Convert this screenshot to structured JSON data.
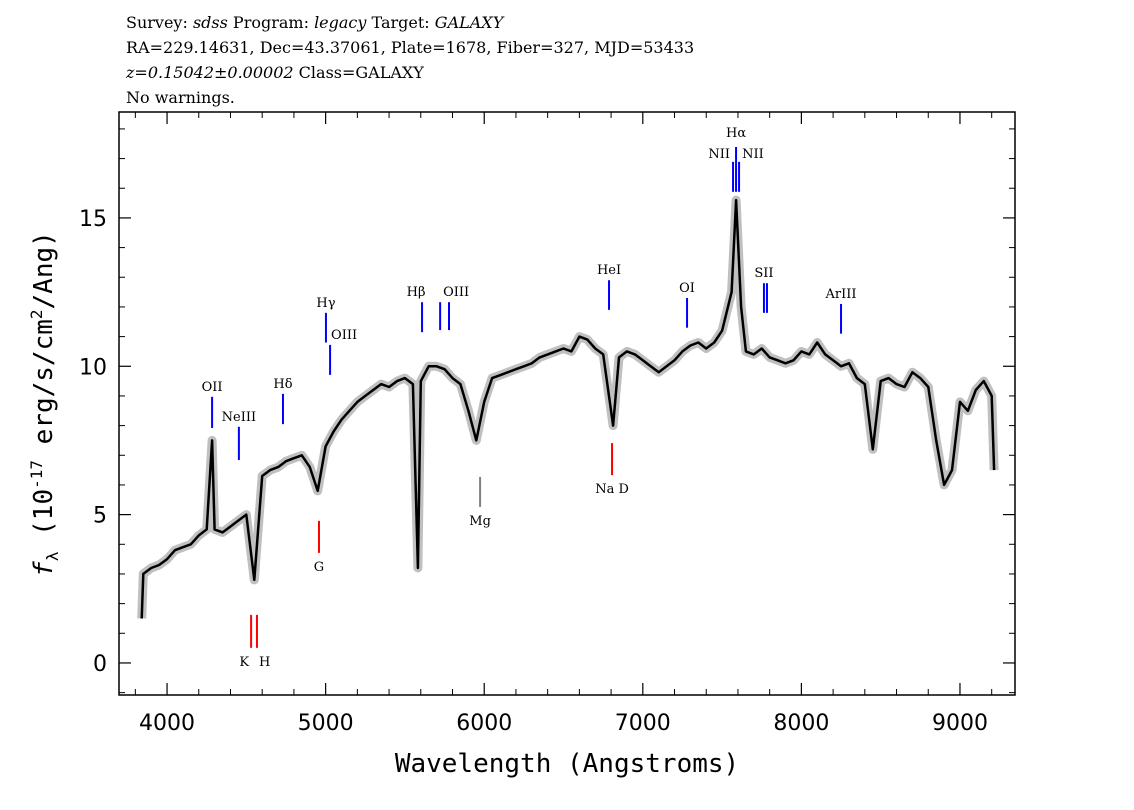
{
  "header": {
    "survey_label": "Survey:",
    "survey": "sdss",
    "program_label": "Program:",
    "program": "legacy",
    "target_label": "Target:",
    "target": "GALAXY",
    "line2": "RA=229.14631, Dec=43.37061, Plate=1678, Fiber=327, MJD=53433",
    "redshift": "z=0.15042±0.00002",
    "class": "Class=GALAXY",
    "warnings": "No warnings."
  },
  "chart_data": {
    "type": "line",
    "xlabel": "Wavelength (Angstroms)",
    "ylabel_main": "f",
    "ylabel_sub": "λ",
    "ylabel_rest": " (10",
    "ylabel_exp": "-17",
    "ylabel_tail": " erg/s/cm",
    "ylabel_exp2": "2",
    "ylabel_end": "/Ang)",
    "xlim": [
      3697,
      9347
    ],
    "ylim": [
      -1.08,
      18.57
    ],
    "xticks": [
      4000,
      5000,
      6000,
      7000,
      8000,
      9000
    ],
    "yticks": [
      0,
      5,
      10,
      15
    ],
    "grid": false,
    "colors": {
      "flux": "#000000",
      "error": "#c0c0c0",
      "emission": "#0000ff",
      "absorption": "#ff0000",
      "sky": "#808080"
    },
    "flux": {
      "x": [
        3840,
        3850,
        3900,
        3950,
        4000,
        4050,
        4100,
        4150,
        4200,
        4250,
        4284,
        4300,
        4350,
        4400,
        4450,
        4500,
        4550,
        4600,
        4650,
        4700,
        4750,
        4800,
        4850,
        4900,
        4950,
        5000,
        5050,
        5100,
        5150,
        5200,
        5250,
        5300,
        5350,
        5400,
        5450,
        5500,
        5550,
        5582,
        5600,
        5650,
        5700,
        5750,
        5800,
        5850,
        5900,
        5950,
        6000,
        6050,
        6100,
        6150,
        6200,
        6250,
        6300,
        6350,
        6400,
        6450,
        6500,
        6550,
        6600,
        6650,
        6700,
        6750,
        6813,
        6850,
        6900,
        6950,
        7000,
        7050,
        7100,
        7150,
        7200,
        7250,
        7300,
        7350,
        7400,
        7450,
        7500,
        7560,
        7588,
        7620,
        7650,
        7700,
        7750,
        7800,
        7850,
        7900,
        7950,
        8000,
        8050,
        8100,
        8150,
        8200,
        8250,
        8300,
        8350,
        8400,
        8450,
        8500,
        8550,
        8600,
        8650,
        8700,
        8750,
        8800,
        8850,
        8900,
        8950,
        9000,
        9050,
        9100,
        9150,
        9200,
        9215
      ],
      "y": [
        1.5,
        3.0,
        3.2,
        3.3,
        3.5,
        3.8,
        3.9,
        4.0,
        4.3,
        4.5,
        7.5,
        4.5,
        4.4,
        4.6,
        4.8,
        5.0,
        2.8,
        6.3,
        6.5,
        6.6,
        6.8,
        6.9,
        7.0,
        6.6,
        5.8,
        7.3,
        7.8,
        8.2,
        8.5,
        8.8,
        9.0,
        9.2,
        9.4,
        9.3,
        9.5,
        9.6,
        9.4,
        3.2,
        9.5,
        10.0,
        10.0,
        9.9,
        9.6,
        9.4,
        8.5,
        7.5,
        8.8,
        9.6,
        9.7,
        9.8,
        9.9,
        10.0,
        10.1,
        10.3,
        10.4,
        10.5,
        10.6,
        10.5,
        11.0,
        10.9,
        10.6,
        10.4,
        8.0,
        10.3,
        10.5,
        10.4,
        10.2,
        10.0,
        9.8,
        10.0,
        10.2,
        10.5,
        10.7,
        10.8,
        10.6,
        10.8,
        11.2,
        12.5,
        15.6,
        12.0,
        10.5,
        10.4,
        10.6,
        10.3,
        10.2,
        10.1,
        10.2,
        10.5,
        10.4,
        10.8,
        10.4,
        10.2,
        10.0,
        10.1,
        9.6,
        9.4,
        7.2,
        9.5,
        9.6,
        9.4,
        9.3,
        9.8,
        9.6,
        9.3,
        7.5,
        6.0,
        6.5,
        8.8,
        8.5,
        9.2,
        9.5,
        9.0,
        6.5
      ]
    },
    "lines": [
      {
        "label": "OII",
        "wave": 4284,
        "type": "emission",
        "y": [
          8.97,
          7.92
        ]
      },
      {
        "label": "NeIII",
        "wave": 4453,
        "type": "emission",
        "y": [
          7.96,
          6.84
        ]
      },
      {
        "label": "Hδ",
        "wave": 4731,
        "type": "emission",
        "y": [
          9.07,
          8.05
        ]
      },
      {
        "label": "Hγ",
        "wave": 5002,
        "type": "emission",
        "y": [
          11.8,
          10.8
        ]
      },
      {
        "label": "OIII",
        "wave": 5028,
        "type": "emission",
        "y": [
          10.72,
          9.71
        ]
      },
      {
        "label": "Hβ",
        "wave": 5608,
        "type": "emission",
        "y": [
          12.16,
          11.15
        ]
      },
      {
        "label": "OIII",
        "wave": 5722,
        "type": "emission",
        "y": [
          12.16,
          11.22
        ]
      },
      {
        "label": "",
        "wave": 5778,
        "type": "emission",
        "y": [
          12.16,
          11.22
        ]
      },
      {
        "label": "HeI",
        "wave": 6787,
        "type": "emission",
        "y": [
          12.9,
          11.9
        ]
      },
      {
        "label": "OI",
        "wave": 7279,
        "type": "emission",
        "y": [
          12.3,
          11.3
        ]
      },
      {
        "label": "NII",
        "wave": 7569,
        "type": "emission",
        "y": [
          16.89,
          15.88
        ]
      },
      {
        "label": "Hα",
        "wave": 7588,
        "type": "emission",
        "y": [
          17.39,
          15.88
        ]
      },
      {
        "label": "NII",
        "wave": 7607,
        "type": "emission",
        "y": [
          16.89,
          15.88
        ]
      },
      {
        "label": "SII",
        "wave": 7764,
        "type": "emission",
        "y": [
          12.8,
          11.8
        ]
      },
      {
        "label": "",
        "wave": 7783,
        "type": "emission",
        "y": [
          12.8,
          11.8
        ]
      },
      {
        "label": "ArIII",
        "wave": 8250,
        "type": "emission",
        "y": [
          12.1,
          11.1
        ]
      },
      {
        "label": "K",
        "wave": 4530,
        "type": "absorption",
        "y": [
          1.62,
          0.51
        ]
      },
      {
        "label": "H",
        "wave": 4567,
        "type": "absorption",
        "y": [
          1.62,
          0.51
        ]
      },
      {
        "label": "G",
        "wave": 4958,
        "type": "absorption",
        "y": [
          4.79,
          3.71
        ]
      },
      {
        "label": "Mg",
        "wave": 5974,
        "type": "sky",
        "y": [
          6.27,
          5.26
        ]
      },
      {
        "label": "Na D",
        "wave": 6806,
        "type": "absorption",
        "y": [
          7.41,
          6.33
        ]
      }
    ]
  }
}
